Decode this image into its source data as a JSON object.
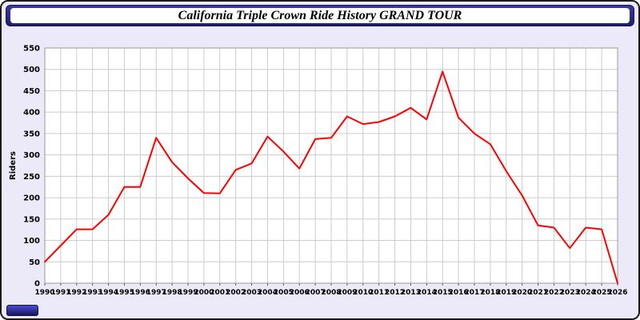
{
  "window": {
    "title": "California Triple Crown Ride History GRAND TOUR"
  },
  "colors": {
    "line": "#ff0000",
    "titlebar": "#26267d",
    "page_background": "#eceaf8",
    "plot_background": "#ffffff",
    "grid": "#cccccc",
    "axis_border": "#999999",
    "tick_text": "#000000"
  },
  "chart_data": {
    "type": "line",
    "title": "California Triple Crown Ride History GRAND TOUR",
    "xlabel": "",
    "ylabel": "Riders",
    "ylim": [
      0,
      550
    ],
    "yticks": [
      0,
      50,
      100,
      150,
      200,
      250,
      300,
      350,
      400,
      450,
      500,
      550
    ],
    "grid": true,
    "legend": "none",
    "x": [
      1990,
      1991,
      1992,
      1993,
      1994,
      1995,
      1996,
      1997,
      1998,
      1999,
      2000,
      2001,
      2002,
      2003,
      2004,
      2005,
      2006,
      2007,
      2008,
      2009,
      2010,
      2011,
      2012,
      2013,
      2014,
      2015,
      2016,
      2017,
      2018,
      2019,
      2020,
      2021,
      2022,
      2023,
      2024,
      2025,
      2026
    ],
    "series": [
      {
        "name": "Riders",
        "values": [
          50,
          88,
          126,
          126,
          160,
          225,
          225,
          340,
          283,
          245,
          211,
          210,
          265,
          280,
          343,
          308,
          268,
          337,
          340,
          390,
          372,
          377,
          390,
          410,
          383,
          495,
          387,
          350,
          325,
          262,
          205,
          135,
          130,
          82,
          130,
          126,
          0
        ]
      }
    ]
  }
}
